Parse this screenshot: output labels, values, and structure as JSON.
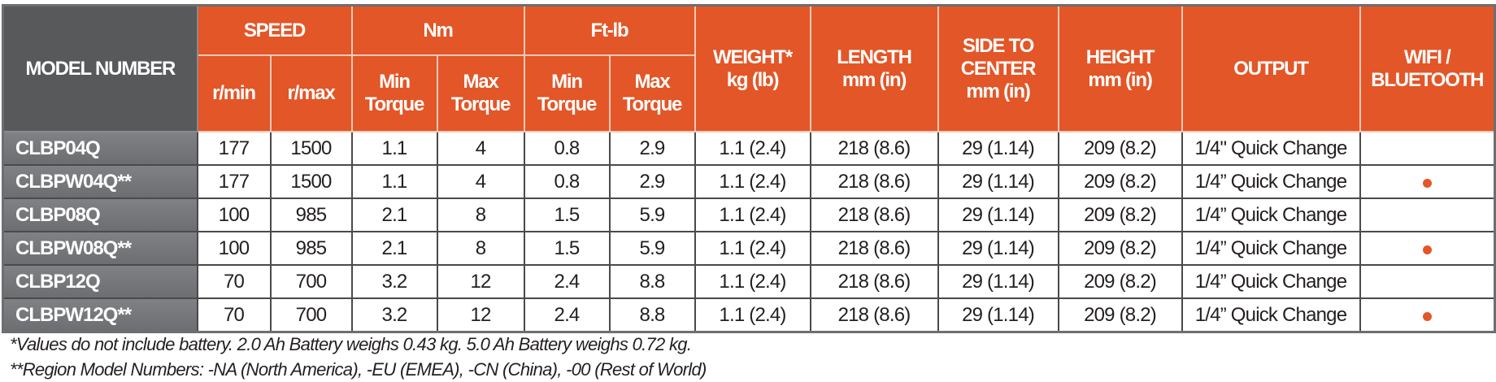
{
  "header": {
    "model": "MODEL NUMBER",
    "speed": "SPEED",
    "nm": "Nm",
    "ftlb": "Ft-lb",
    "weight": [
      "WEIGHT*",
      "kg (lb)"
    ],
    "length": [
      "LENGTH",
      "mm (in)"
    ],
    "side": [
      "SIDE TO",
      "CENTER",
      "mm (in)"
    ],
    "height": [
      "HEIGHT",
      "mm (in)"
    ],
    "output": "OUTPUT",
    "wifi": [
      "WIFI /",
      "BLUETOOTH"
    ],
    "rmin": "r/min",
    "rmax": "r/max",
    "min_torque": [
      "Min",
      "Torque"
    ],
    "max_torque": [
      "Max",
      "Torque"
    ]
  },
  "rows": [
    {
      "model": "CLBP04Q",
      "rmin": "177",
      "rmax": "1500",
      "nm_min": "1.1",
      "nm_max": "4",
      "ft_min": "0.8",
      "ft_max": "2.9",
      "weight": "1.1 (2.4)",
      "length": "218 (8.6)",
      "side": "29 (1.14)",
      "height": "209 (8.2)",
      "output": "1/4\" Quick Change",
      "wifi": false
    },
    {
      "model": "CLBPW04Q**",
      "rmin": "177",
      "rmax": "1500",
      "nm_min": "1.1",
      "nm_max": "4",
      "ft_min": "0.8",
      "ft_max": "2.9",
      "weight": "1.1 (2.4)",
      "length": "218 (8.6)",
      "side": "29 (1.14)",
      "height": "209 (8.2)",
      "output": "1/4” Quick Change",
      "wifi": true
    },
    {
      "model": "CLBP08Q",
      "rmin": "100",
      "rmax": "985",
      "nm_min": "2.1",
      "nm_max": "8",
      "ft_min": "1.5",
      "ft_max": "5.9",
      "weight": "1.1 (2.4)",
      "length": "218 (8.6)",
      "side": "29 (1.14)",
      "height": "209 (8.2)",
      "output": "1/4” Quick Change",
      "wifi": false
    },
    {
      "model": "CLBPW08Q**",
      "rmin": "100",
      "rmax": "985",
      "nm_min": "2.1",
      "nm_max": "8",
      "ft_min": "1.5",
      "ft_max": "5.9",
      "weight": "1.1 (2.4)",
      "length": "218 (8.6)",
      "side": "29 (1.14)",
      "height": "209 (8.2)",
      "output": "1/4” Quick Change",
      "wifi": true
    },
    {
      "model": "CLBP12Q",
      "rmin": "70",
      "rmax": "700",
      "nm_min": "3.2",
      "nm_max": "12",
      "ft_min": "2.4",
      "ft_max": "8.8",
      "weight": "1.1 (2.4)",
      "length": "218 (8.6)",
      "side": "29 (1.14)",
      "height": "209 (8.2)",
      "output": "1/4” Quick Change",
      "wifi": false
    },
    {
      "model": "CLBPW12Q**",
      "rmin": "70",
      "rmax": "700",
      "nm_min": "3.2",
      "nm_max": "12",
      "ft_min": "2.4",
      "ft_max": "8.8",
      "weight": "1.1 (2.4)",
      "length": "218 (8.6)",
      "side": "29 (1.14)",
      "height": "209 (8.2)",
      "output": "1/4” Quick Change",
      "wifi": true
    }
  ],
  "footnotes": [
    "*Values do not include battery. 2.0 Ah Battery weighs 0.43 kg. 5.0 Ah Battery weighs 0.72 kg.",
    "**Region Model Numbers: -NA (North America), -EU (EMEA), -CN (China), -00 (Rest of World)"
  ],
  "colors": {
    "accent": "#e35627",
    "model_header": "#58595b",
    "model_cell": "#77787b"
  }
}
